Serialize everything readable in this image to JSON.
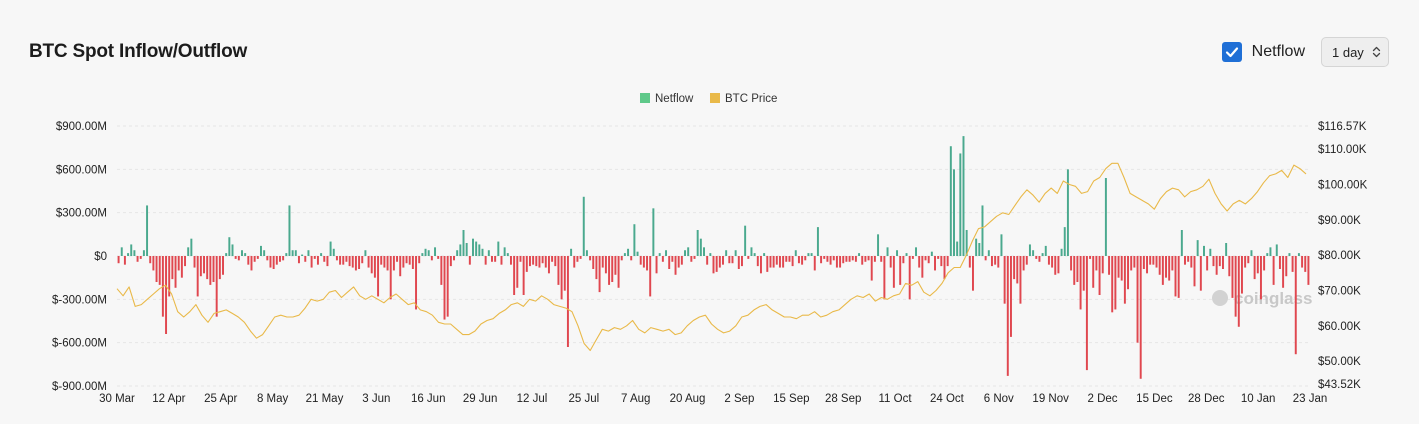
{
  "title": "BTC Spot Inflow/Outflow",
  "controls": {
    "netflow_checkbox_label": "Netflow",
    "netflow_checked": true,
    "interval_value": "1 day"
  },
  "watermark": "coinglass",
  "colors": {
    "positive": "#4aa98e",
    "negative": "#e0474f",
    "price": "#e9b949",
    "grid": "#e6e6e6",
    "legend_netflow": "#5fc98a"
  },
  "chart_data": {
    "type": "bar+line",
    "legend": [
      {
        "name": "Netflow",
        "color": "#5fc98a"
      },
      {
        "name": "BTC Price",
        "color": "#e9b949"
      }
    ],
    "left_axis": {
      "ticks": [
        "$900.00M",
        "$600.00M",
        "$300.00M",
        "$0",
        "$-300.00M",
        "$-600.00M",
        "$-900.00M"
      ],
      "tick_values_m": [
        900,
        600,
        300,
        0,
        -300,
        -600,
        -900
      ],
      "range_m": [
        -900,
        900
      ]
    },
    "right_axis": {
      "ticks": [
        "$116.57K",
        "$110.00K",
        "$100.00K",
        "$90.00K",
        "$80.00K",
        "$70.00K",
        "$60.00K",
        "$50.00K",
        "$43.52K"
      ],
      "tick_values_k": [
        116.57,
        110,
        100,
        90,
        80,
        70,
        60,
        50,
        43.52
      ],
      "range_k": [
        43.52,
        116.57
      ]
    },
    "x_labels": [
      "30 Mar",
      "12 Apr",
      "25 Apr",
      "8 May",
      "21 May",
      "3 Jun",
      "16 Jun",
      "29 Jun",
      "12 Jul",
      "25 Jul",
      "7 Aug",
      "20 Aug",
      "2 Sep",
      "15 Sep",
      "28 Sep",
      "11 Oct",
      "24 Oct",
      "6 Nov",
      "19 Nov",
      "2 Dec",
      "15 Dec",
      "28 Dec",
      "10 Jan",
      "23 Jan"
    ],
    "x_start": "30 Mar",
    "x_end": "23 Jan",
    "series": [
      {
        "name": "Netflow",
        "unit": "$M",
        "type": "bar",
        "values": [
          -50,
          60,
          -60,
          20,
          80,
          40,
          -40,
          -20,
          40,
          350,
          -50,
          -100,
          -180,
          -200,
          -420,
          -540,
          -280,
          -160,
          -220,
          -100,
          -150,
          -70,
          60,
          120,
          -80,
          -280,
          -140,
          -120,
          -160,
          -200,
          -180,
          -420,
          -160,
          -130,
          20,
          130,
          80,
          -20,
          -30,
          40,
          20,
          -60,
          -100,
          -40,
          -20,
          70,
          40,
          -30,
          -80,
          -90,
          -60,
          -40,
          -30,
          20,
          350,
          40,
          40,
          -50,
          10,
          -40,
          40,
          -80,
          -20,
          -60,
          20,
          -40,
          -70,
          100,
          50,
          -30,
          -60,
          -60,
          -40,
          -70,
          -80,
          -100,
          -90,
          -50,
          40,
          -80,
          -120,
          -150,
          -280,
          -60,
          -80,
          -100,
          -300,
          -100,
          -40,
          -140,
          -80,
          -50,
          -60,
          -90,
          -370,
          -50,
          20,
          50,
          40,
          -30,
          60,
          -20,
          -200,
          -440,
          -420,
          -70,
          -30,
          40,
          80,
          180,
          90,
          -60,
          120,
          100,
          80,
          50,
          -60,
          40,
          -40,
          -40,
          100,
          -60,
          60,
          20,
          -60,
          -270,
          -220,
          -40,
          -270,
          -110,
          -70,
          -60,
          -70,
          -80,
          -50,
          -80,
          -120,
          -40,
          -70,
          -200,
          -300,
          -240,
          -630,
          50,
          -80,
          -40,
          -20,
          410,
          40,
          -30,
          -90,
          -160,
          -250,
          -80,
          -120,
          -200,
          -180,
          -130,
          -220,
          -30,
          20,
          50,
          -30,
          220,
          30,
          -60,
          -80,
          -100,
          -280,
          330,
          -120,
          20,
          -40,
          40,
          -90,
          -40,
          -130,
          -80,
          -60,
          40,
          60,
          -40,
          -20,
          180,
          120,
          60,
          -60,
          20,
          -120,
          -110,
          -80,
          -60,
          40,
          -50,
          -50,
          40,
          -90,
          -70,
          210,
          -20,
          60,
          20,
          -70,
          -120,
          20,
          -110,
          -80,
          -80,
          -60,
          -80,
          -80,
          -40,
          -40,
          -70,
          40,
          -50,
          -60,
          -30,
          20,
          20,
          -100,
          200,
          -50,
          -20,
          -40,
          -60,
          -30,
          -80,
          -80,
          -50,
          -40,
          -40,
          -30,
          -40,
          20,
          -60,
          -40,
          -30,
          -170,
          -40,
          150,
          -40,
          -300,
          60,
          -80,
          -220,
          40,
          -200,
          -50,
          20,
          -300,
          -20,
          60,
          -80,
          -150,
          -30,
          -50,
          30,
          -100,
          -20,
          -70,
          -160,
          -70,
          760,
          600,
          100,
          710,
          830,
          180,
          -80,
          -240,
          120,
          90,
          350,
          -30,
          40,
          -70,
          -60,
          -80,
          150,
          -330,
          -830,
          -560,
          -160,
          -190,
          -330,
          -100,
          -60,
          80,
          40,
          -20,
          -40,
          20,
          70,
          -60,
          -80,
          -130,
          -120,
          50,
          200,
          600,
          -100,
          -200,
          -180,
          -370,
          -240,
          -790,
          -20,
          -220,
          -100,
          -270,
          -120,
          540,
          -130,
          -390,
          -370,
          -150,
          -170,
          -330,
          -230,
          -100,
          -80,
          -600,
          -850,
          -90,
          -120,
          -60,
          -60,
          -80,
          -130,
          -200,
          -150,
          -170,
          -100,
          -280,
          -290,
          180,
          -60,
          -40,
          -80,
          -210,
          110,
          -240,
          70,
          -100,
          50,
          -70,
          -130,
          -70,
          -90,
          90,
          -140,
          -290,
          -420,
          -490,
          -260,
          -80,
          -50,
          40,
          -160,
          -120,
          -300,
          -100,
          20,
          60,
          -200,
          80,
          -90,
          -220,
          -140,
          20,
          -110,
          -680,
          20,
          -80,
          -110,
          -200
        ]
      },
      {
        "name": "BTC Price",
        "unit": "$K",
        "type": "line",
        "points": [
          [
            0,
            70.5
          ],
          [
            2,
            68.5
          ],
          [
            4,
            71
          ],
          [
            6,
            65.5
          ],
          [
            8,
            66
          ],
          [
            10,
            67.5
          ],
          [
            12,
            69
          ],
          [
            14,
            70.5
          ],
          [
            16,
            71.5
          ],
          [
            18,
            69
          ],
          [
            20,
            64
          ],
          [
            22,
            62.5
          ],
          [
            24,
            64
          ],
          [
            26,
            66
          ],
          [
            28,
            63
          ],
          [
            30,
            61
          ],
          [
            32,
            63.5
          ],
          [
            34,
            64
          ],
          [
            36,
            64.5
          ],
          [
            38,
            63.5
          ],
          [
            40,
            62.5
          ],
          [
            42,
            61
          ],
          [
            44,
            58.5
          ],
          [
            46,
            56.5
          ],
          [
            48,
            57.5
          ],
          [
            50,
            60
          ],
          [
            52,
            62.5
          ],
          [
            54,
            63
          ],
          [
            56,
            62.5
          ],
          [
            58,
            62.5
          ],
          [
            60,
            63
          ],
          [
            62,
            65
          ],
          [
            64,
            67.5
          ],
          [
            66,
            67
          ],
          [
            68,
            67.5
          ],
          [
            70,
            69.5
          ],
          [
            72,
            70
          ],
          [
            74,
            68
          ],
          [
            76,
            69.5
          ],
          [
            78,
            71
          ],
          [
            80,
            68.5
          ],
          [
            82,
            67.5
          ],
          [
            84,
            68.5
          ],
          [
            86,
            67.5
          ],
          [
            88,
            66.5
          ],
          [
            90,
            68
          ],
          [
            92,
            69
          ],
          [
            94,
            67.5
          ],
          [
            96,
            66
          ],
          [
            98,
            66.5
          ],
          [
            100,
            64.5
          ],
          [
            102,
            64
          ],
          [
            104,
            63
          ],
          [
            106,
            61
          ],
          [
            108,
            60.5
          ],
          [
            110,
            60.5
          ],
          [
            112,
            59
          ],
          [
            114,
            57.5
          ],
          [
            116,
            57.5
          ],
          [
            118,
            58.5
          ],
          [
            120,
            60.5
          ],
          [
            122,
            61.5
          ],
          [
            124,
            62
          ],
          [
            126,
            63.5
          ],
          [
            128,
            64.5
          ],
          [
            130,
            66
          ],
          [
            132,
            66.5
          ],
          [
            134,
            65.5
          ],
          [
            136,
            67.5
          ],
          [
            138,
            67
          ],
          [
            140,
            68.5
          ],
          [
            142,
            67.5
          ],
          [
            144,
            66
          ],
          [
            146,
            65.5
          ],
          [
            148,
            65
          ],
          [
            150,
            64
          ],
          [
            152,
            60
          ],
          [
            154,
            55
          ],
          [
            156,
            53
          ],
          [
            158,
            56
          ],
          [
            160,
            59
          ],
          [
            162,
            58.5
          ],
          [
            164,
            59.5
          ],
          [
            166,
            59
          ],
          [
            168,
            60
          ],
          [
            170,
            61.5
          ],
          [
            172,
            59
          ],
          [
            174,
            58
          ],
          [
            176,
            59.5
          ],
          [
            178,
            59
          ],
          [
            180,
            58.5
          ],
          [
            182,
            59
          ],
          [
            184,
            57.5
          ],
          [
            186,
            58
          ],
          [
            188,
            60
          ],
          [
            190,
            61.5
          ],
          [
            192,
            62.5
          ],
          [
            194,
            63
          ],
          [
            196,
            60.5
          ],
          [
            198,
            59
          ],
          [
            200,
            58
          ],
          [
            202,
            58.5
          ],
          [
            204,
            60
          ],
          [
            206,
            62.5
          ],
          [
            208,
            63
          ],
          [
            210,
            64.5
          ],
          [
            212,
            65.5
          ],
          [
            214,
            66
          ],
          [
            216,
            64.5
          ],
          [
            218,
            63.5
          ],
          [
            220,
            62.5
          ],
          [
            222,
            62.5
          ],
          [
            224,
            62
          ],
          [
            226,
            63
          ],
          [
            228,
            63
          ],
          [
            230,
            64
          ],
          [
            232,
            62.5
          ],
          [
            234,
            63
          ],
          [
            236,
            64
          ],
          [
            238,
            64.5
          ],
          [
            240,
            66
          ],
          [
            242,
            67.5
          ],
          [
            244,
            68.5
          ],
          [
            246,
            68
          ],
          [
            248,
            69
          ],
          [
            250,
            67
          ],
          [
            252,
            68
          ],
          [
            254,
            67.5
          ],
          [
            256,
            68.5
          ],
          [
            258,
            69
          ],
          [
            260,
            72
          ],
          [
            262,
            71.5
          ],
          [
            264,
            72.5
          ],
          [
            266,
            69.5
          ],
          [
            268,
            68.5
          ],
          [
            270,
            70
          ],
          [
            272,
            72
          ],
          [
            274,
            75
          ],
          [
            276,
            76.5
          ],
          [
            278,
            76.5
          ],
          [
            280,
            80
          ],
          [
            282,
            84
          ],
          [
            284,
            87.5
          ],
          [
            286,
            88
          ],
          [
            288,
            89.5
          ],
          [
            290,
            91
          ],
          [
            292,
            92
          ],
          [
            294,
            91.5
          ],
          [
            296,
            94
          ],
          [
            298,
            96.5
          ],
          [
            300,
            98.5
          ],
          [
            302,
            97
          ],
          [
            304,
            95
          ],
          [
            306,
            97.5
          ],
          [
            308,
            99
          ],
          [
            310,
            97.5
          ],
          [
            312,
            101
          ],
          [
            314,
            100
          ],
          [
            316,
            99.5
          ],
          [
            318,
            97.5
          ],
          [
            320,
            98
          ],
          [
            322,
            101
          ],
          [
            324,
            102
          ],
          [
            326,
            104.5
          ],
          [
            328,
            106
          ],
          [
            330,
            106
          ],
          [
            332,
            102
          ],
          [
            334,
            97.5
          ],
          [
            336,
            96.5
          ],
          [
            338,
            95.5
          ],
          [
            340,
            94.5
          ],
          [
            342,
            93
          ],
          [
            344,
            96
          ],
          [
            346,
            98
          ],
          [
            348,
            99
          ],
          [
            350,
            98.5
          ],
          [
            352,
            96.5
          ],
          [
            354,
            98
          ],
          [
            356,
            98.5
          ],
          [
            358,
            99.5
          ],
          [
            360,
            101.5
          ],
          [
            362,
            97.5
          ],
          [
            364,
            94.5
          ],
          [
            366,
            92.5
          ],
          [
            368,
            94.5
          ],
          [
            370,
            95.5
          ],
          [
            372,
            94.5
          ],
          [
            374,
            96
          ],
          [
            376,
            98
          ],
          [
            378,
            100.5
          ],
          [
            380,
            102.5
          ],
          [
            382,
            103
          ],
          [
            384,
            104
          ],
          [
            386,
            102
          ],
          [
            388,
            105.5
          ],
          [
            390,
            104.5
          ],
          [
            392,
            103
          ]
        ]
      }
    ]
  }
}
